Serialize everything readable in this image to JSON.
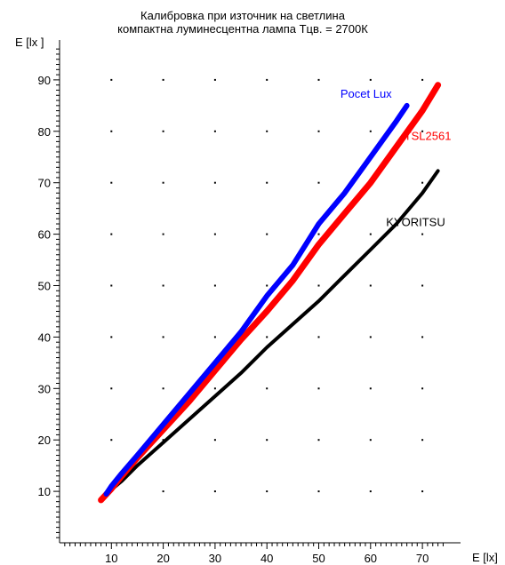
{
  "chart_data": {
    "type": "line",
    "title": "Калибровка при източник на светлина",
    "subtitle": "компактна луминесцентна лампа  Тцв. = 2700К",
    "xlabel": "E [lx]",
    "ylabel": "E [lx ]",
    "xlim": [
      0,
      75
    ],
    "ylim": [
      0,
      97
    ],
    "xticks": [
      "10",
      "20",
      "30",
      "40",
      "50",
      "60",
      "70"
    ],
    "yticks": [
      "10",
      "20",
      "30",
      "40",
      "50",
      "60",
      "70",
      "80",
      "90"
    ],
    "grid": "dots",
    "series": [
      {
        "name": "KYORITSU",
        "color": "#000000",
        "x": [
          9,
          12,
          15,
          20,
          25,
          30,
          35,
          40,
          45,
          50,
          55,
          60,
          65,
          70,
          73
        ],
        "y": [
          9.5,
          12,
          15,
          19.5,
          24,
          28.5,
          33,
          38,
          42.5,
          47,
          52,
          57,
          62,
          68,
          72.3
        ]
      },
      {
        "name": "TSL2561",
        "color": "#ff0000",
        "x": [
          8,
          10,
          12,
          15,
          20,
          25,
          30,
          35,
          40,
          45,
          50,
          55,
          60,
          65,
          70,
          73
        ],
        "y": [
          8.3,
          10.5,
          13,
          16.5,
          22,
          27.5,
          33.5,
          39.5,
          45,
          51,
          58,
          64,
          70,
          77,
          84,
          89
        ]
      },
      {
        "name": "Pocet Lux",
        "color": "#0000ff",
        "x": [
          9,
          10,
          12,
          15,
          20,
          25,
          30,
          35,
          40,
          45,
          50,
          55,
          60,
          65,
          67
        ],
        "y": [
          9.5,
          11,
          13.5,
          17,
          23,
          29,
          35,
          41,
          48,
          54,
          62,
          68,
          75,
          82,
          85
        ]
      }
    ]
  }
}
